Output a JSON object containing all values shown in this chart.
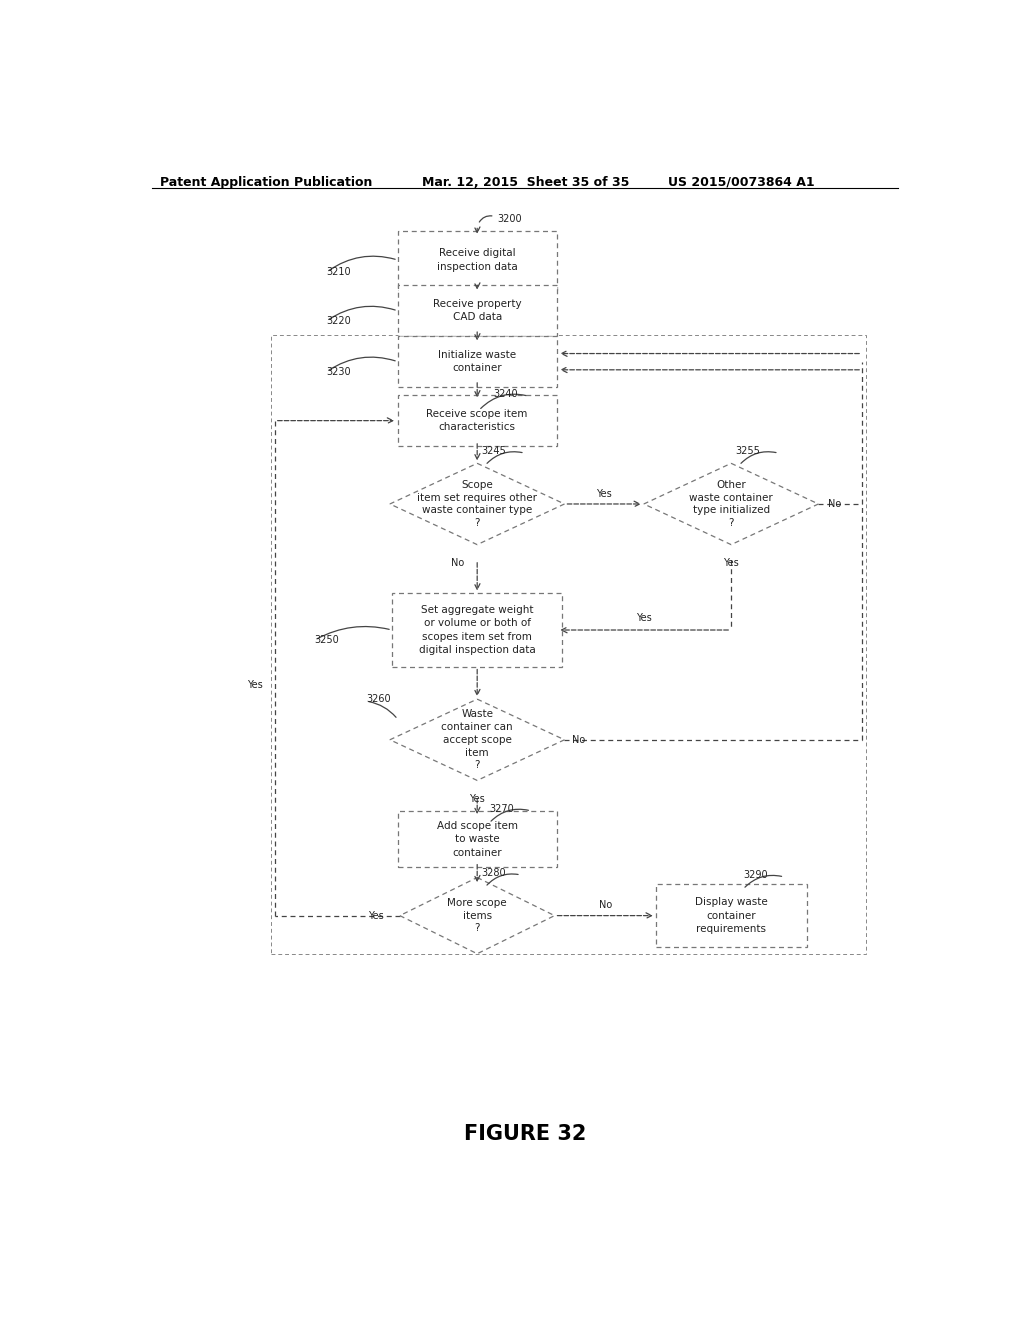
{
  "title": "FIGURE 32",
  "header_left": "Patent Application Publication",
  "header_mid": "Mar. 12, 2015  Sheet 35 of 35",
  "header_right": "US 2015/0073864 A1",
  "bg_color": "#ffffff",
  "arrow_color": "#444444",
  "text_color": "#222222",
  "box_edge": "#777777",
  "fig_width": 10.24,
  "fig_height": 13.2,
  "dpi": 100
}
